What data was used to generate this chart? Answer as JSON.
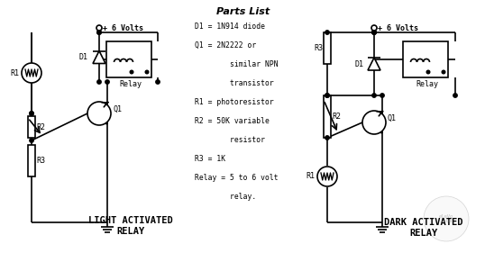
{
  "background_color": "#ffffff",
  "line_color": "#000000",
  "lw": 1.2,
  "parts_list_title": "Parts List",
  "parts_list_lines": [
    "D1 = 1N914 diode",
    "Q1 = 2N2222 or",
    "        similar NPN",
    "        transistor",
    "R1 = photoresistor",
    "R2 = 50K variable",
    "        resistor",
    "R3 = 1K",
    "Relay = 5 to 6 volt",
    "        relay."
  ],
  "label_light": "LIGHT ACTIVATED\nRELAY",
  "label_dark": "DARK ACTIVATED\nRELAY"
}
